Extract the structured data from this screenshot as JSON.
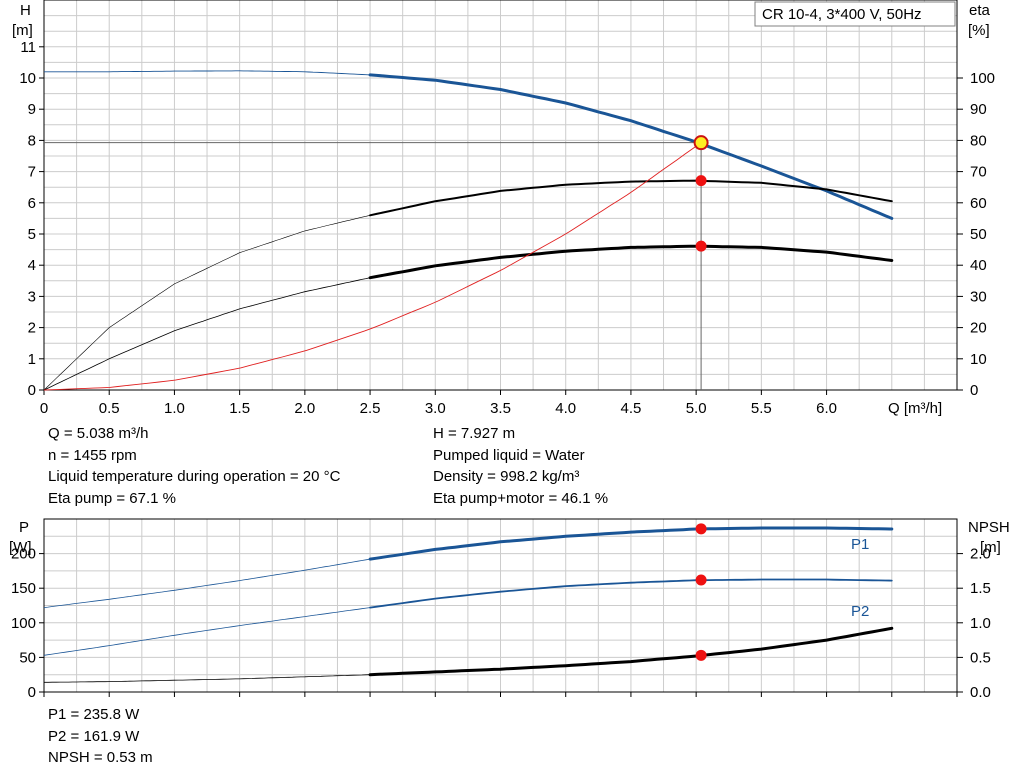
{
  "product_label": "CR 10-4, 3*400 V, 50Hz",
  "chart_data": [
    {
      "type": "line",
      "title": "",
      "xlabel": "Q [m³/h]",
      "y_left_unit_top": "H",
      "y_left_unit_bottom": "[m]",
      "y_right_unit_top": "eta",
      "y_right_unit_bottom": "[%]",
      "xlim": [
        0,
        7.0
      ],
      "ylim_left": [
        0,
        12.5
      ],
      "ylim_right": [
        0,
        125
      ],
      "x_ticks": [
        "0",
        "0.5",
        "1.0",
        "1.5",
        "2.0",
        "2.5",
        "3.0",
        "3.5",
        "4.0",
        "4.5",
        "5.0",
        "5.5",
        "6.0"
      ],
      "y_left_ticks": [
        "0",
        "1",
        "2",
        "3",
        "4",
        "5",
        "6",
        "7",
        "8",
        "9",
        "10",
        "11"
      ],
      "y_right_ticks": [
        "0",
        "10",
        "20",
        "30",
        "40",
        "50",
        "60",
        "70",
        "80",
        "90",
        "100"
      ],
      "grid": true,
      "operating_point": {
        "q": 5.038,
        "h": 7.927
      },
      "series": [
        {
          "key": "H",
          "axis": "left",
          "color": "#1a5596",
          "x": [
            0,
            0.5,
            1.0,
            1.5,
            2.0,
            2.5,
            3.0,
            3.5,
            4.0,
            4.5,
            5.0,
            5.5,
            6.0,
            6.5
          ],
          "values": [
            10.2,
            10.2,
            10.22,
            10.23,
            10.2,
            10.1,
            9.93,
            9.63,
            9.2,
            8.63,
            7.95,
            7.18,
            6.38,
            5.5
          ]
        },
        {
          "key": "eta_pump",
          "axis": "right",
          "color": "#000000",
          "x": [
            0,
            0.5,
            1.0,
            1.5,
            2.0,
            2.5,
            3.0,
            3.5,
            4.0,
            4.5,
            5.0,
            5.5,
            6.0,
            6.5
          ],
          "values": [
            0,
            20,
            34,
            44,
            51,
            56,
            60.5,
            63.8,
            65.8,
            66.8,
            67.1,
            66.4,
            64.3,
            60.5
          ]
        },
        {
          "key": "eta_total",
          "axis": "right",
          "color": "#000000",
          "x": [
            0,
            0.5,
            1.0,
            1.5,
            2.0,
            2.5,
            3.0,
            3.5,
            4.0,
            4.5,
            5.0,
            5.5,
            6.0,
            6.5
          ],
          "values": [
            0,
            10,
            19,
            26,
            31.5,
            36,
            39.8,
            42.5,
            44.5,
            45.7,
            46.1,
            45.7,
            44.2,
            41.5
          ]
        },
        {
          "key": "system_curve",
          "axis": "left",
          "color": "#e02020",
          "x": [
            0,
            0.5,
            1.0,
            1.5,
            2.0,
            2.5,
            3.0,
            3.5,
            4.0,
            4.5,
            5.038
          ],
          "values": [
            0,
            0.08,
            0.31,
            0.7,
            1.25,
            1.95,
            2.81,
            3.83,
            5.0,
            6.33,
            7.927
          ]
        }
      ],
      "marker_values": [
        7.927,
        67.1,
        46.1
      ]
    },
    {
      "type": "line",
      "title": "",
      "xlabel": "",
      "y_left_unit_top": "P",
      "y_left_unit_bottom": "[W]",
      "y_right_unit_top": "NPSH",
      "y_right_unit_bottom": "[m]",
      "xlim": [
        0,
        7.0
      ],
      "ylim_left": [
        0,
        250
      ],
      "ylim_right": [
        0,
        2.5
      ],
      "y_left_ticks": [
        "0",
        "50",
        "100",
        "150",
        "200"
      ],
      "y_right_ticks": [
        "0.0",
        "0.5",
        "1.0",
        "1.5",
        "2.0"
      ],
      "grid": true,
      "series": [
        {
          "key": "P1",
          "name": "P1",
          "axis": "left",
          "color": "#1a5596",
          "x": [
            0,
            0.5,
            1.0,
            1.5,
            2.0,
            2.5,
            3.0,
            3.5,
            4.0,
            4.5,
            5.0,
            5.5,
            6.0,
            6.5
          ],
          "values": [
            122,
            134,
            147,
            161,
            176,
            192,
            206,
            217,
            225,
            231,
            235.5,
            237,
            237,
            235.5
          ]
        },
        {
          "key": "P2",
          "name": "P2",
          "axis": "left",
          "color": "#1a5596",
          "x": [
            0,
            0.5,
            1.0,
            1.5,
            2.0,
            2.5,
            3.0,
            3.5,
            4.0,
            4.5,
            5.0,
            5.5,
            6.0,
            6.5
          ],
          "values": [
            53,
            67,
            82,
            96,
            109,
            122,
            135,
            145,
            153,
            158,
            161.5,
            162.5,
            162.5,
            161
          ]
        },
        {
          "key": "NPSH",
          "axis": "right",
          "color": "#000000",
          "x": [
            0,
            0.5,
            1.0,
            1.5,
            2.0,
            2.5,
            3.0,
            3.5,
            4.0,
            4.5,
            5.0,
            5.5,
            6.0,
            6.5
          ],
          "values": [
            0.14,
            0.15,
            0.17,
            0.19,
            0.22,
            0.25,
            0.29,
            0.33,
            0.38,
            0.44,
            0.52,
            0.62,
            0.75,
            0.92
          ]
        }
      ],
      "marker_values": [
        235.8,
        161.9,
        0.53
      ]
    }
  ],
  "info_top": {
    "q": "Q = 5.038 m³/h",
    "n": "n = 1455 rpm",
    "liquid_temp": "Liquid temperature during operation = 20 °C",
    "eta_pump": "Eta pump = 67.1 %",
    "h": "H = 7.927 m",
    "pumped_liquid": "Pumped liquid = Water",
    "density": "Density = 998.2 kg/m³",
    "eta_pump_motor": "Eta pump+motor = 46.1 %"
  },
  "info_bottom": {
    "p1": "P1 = 235.8 W",
    "p2": "P2 = 161.9 W",
    "npsh": "NPSH = 0.53 m"
  }
}
